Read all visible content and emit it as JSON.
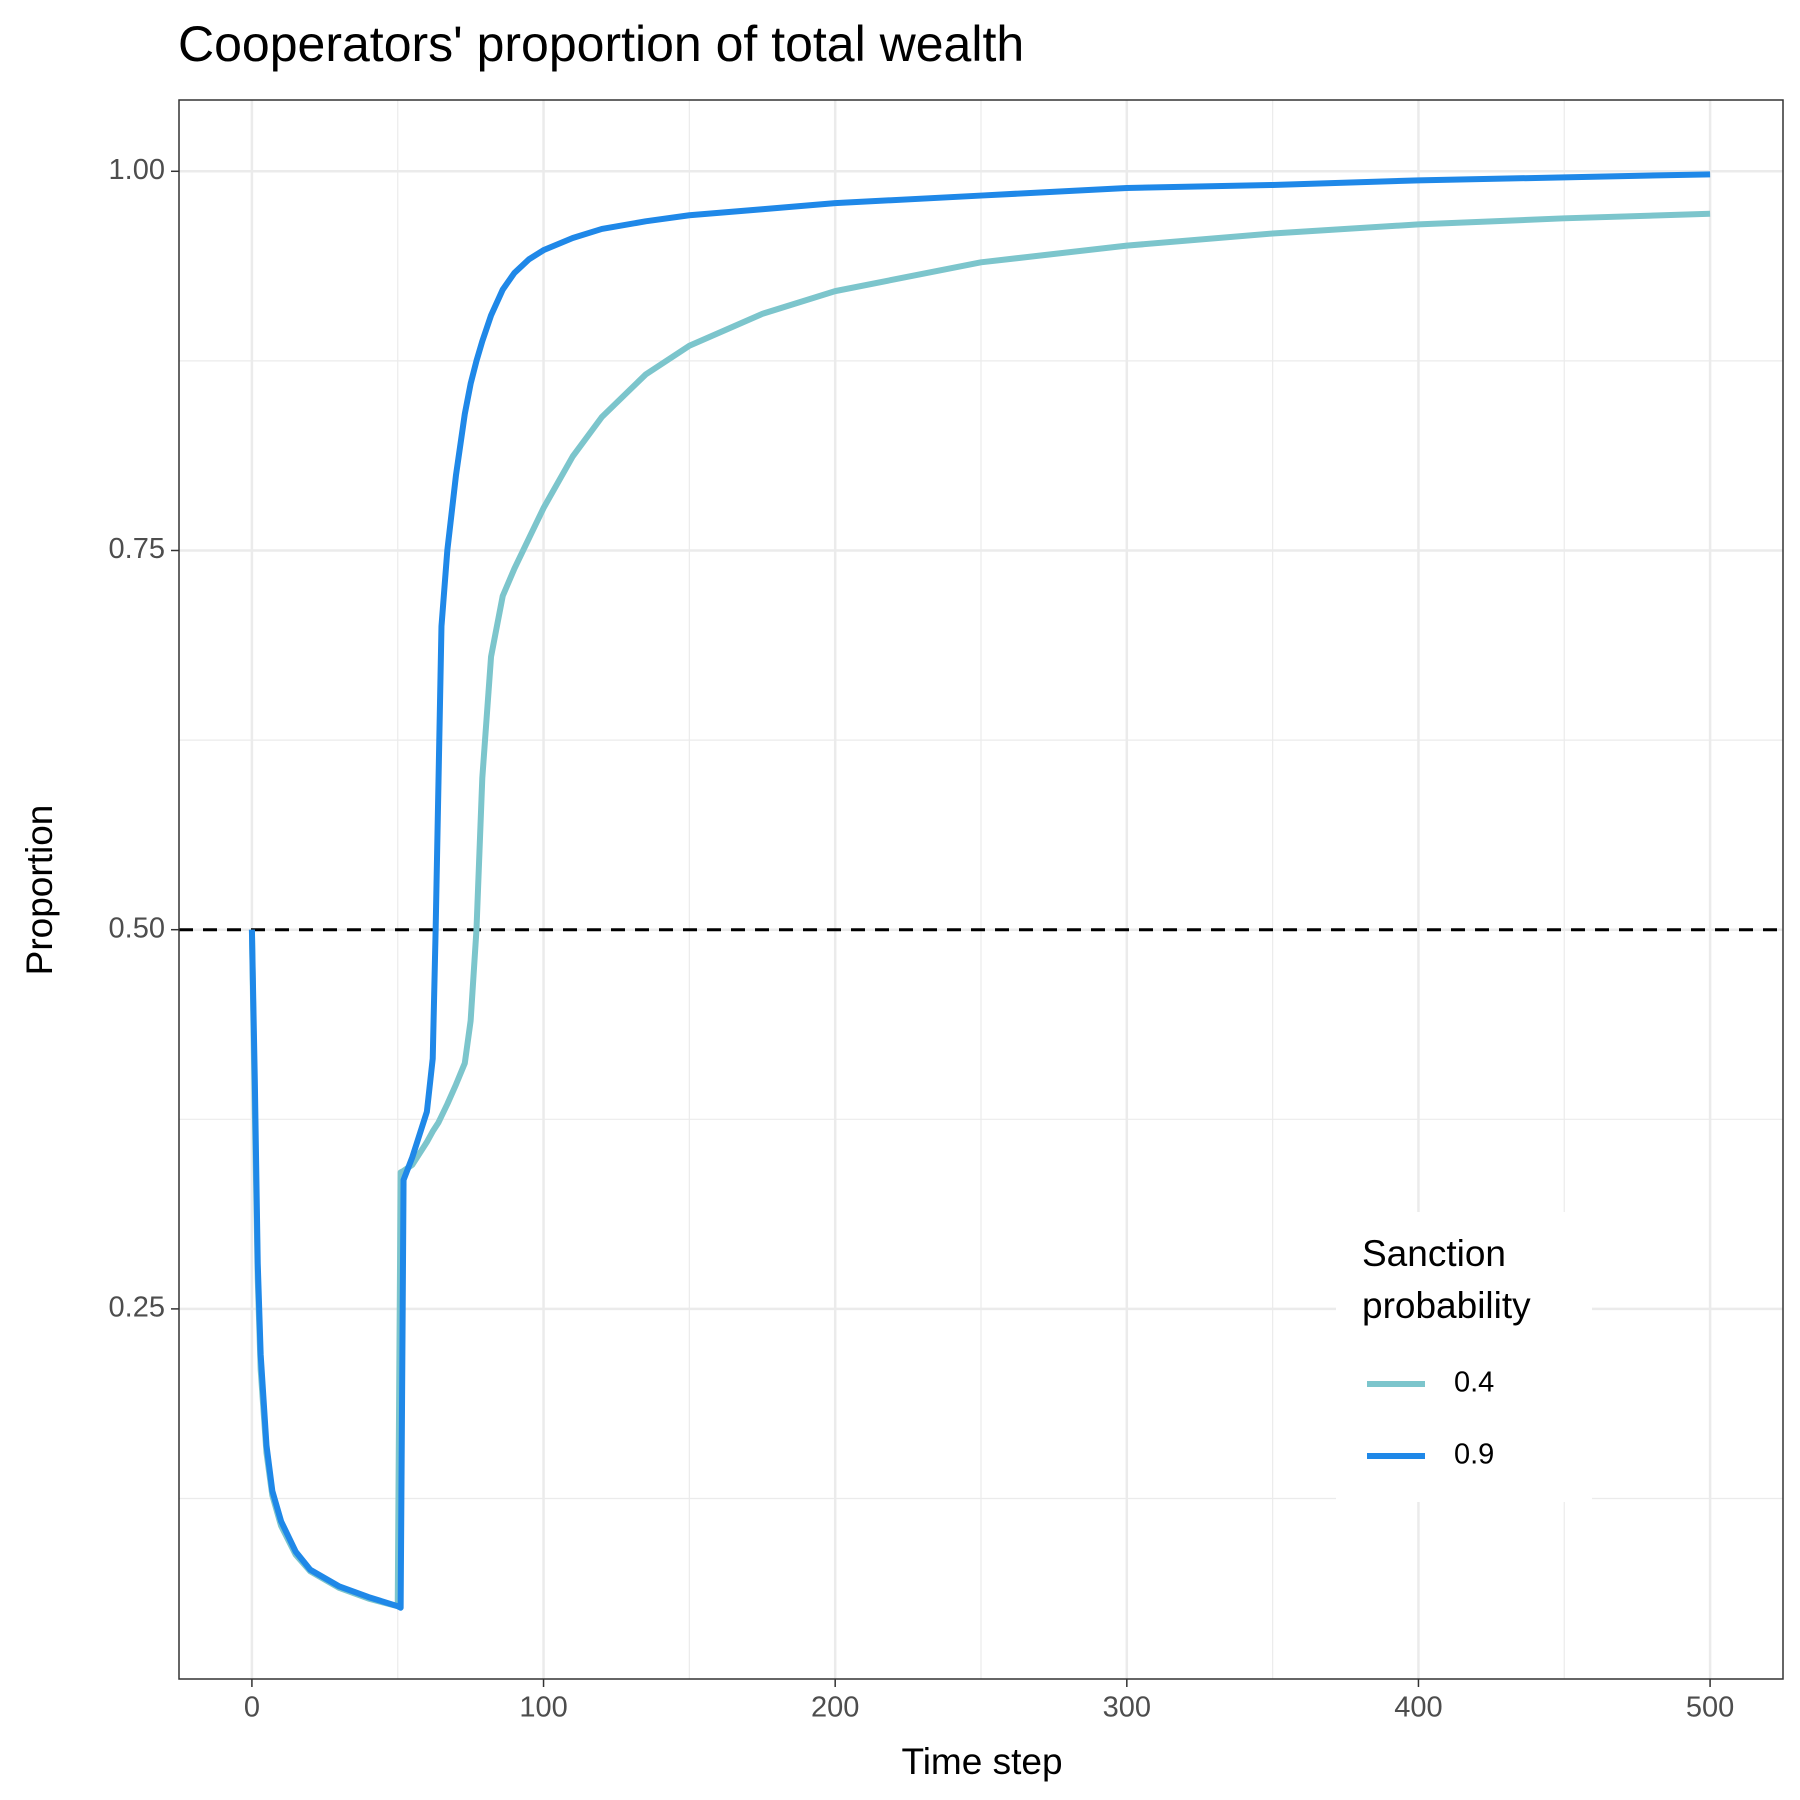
{
  "chart_data": {
    "type": "line",
    "title": "Cooperators' proportion of total wealth",
    "x_label": "Time step",
    "y_label": "Proportion",
    "x": [
      0,
      1,
      2,
      3,
      5,
      7,
      10,
      15,
      20,
      30,
      40,
      50,
      51,
      52,
      55,
      60,
      62,
      63,
      64,
      65,
      67,
      70,
      73,
      75,
      77,
      79,
      82,
      86,
      90,
      95,
      100,
      110,
      120,
      135,
      150,
      175,
      200,
      250,
      300,
      350,
      400,
      450,
      500
    ],
    "series": [
      {
        "name": "0.4",
        "color": "#7cc5cc",
        "values": [
          0.5,
          0.38,
          0.27,
          0.21,
          0.155,
          0.127,
          0.107,
          0.088,
          0.077,
          0.066,
          0.059,
          0.054,
          0.34,
          0.341,
          0.345,
          0.36,
          0.367,
          0.37,
          0.373,
          0.377,
          0.385,
          0.398,
          0.412,
          0.44,
          0.5,
          0.6,
          0.68,
          0.72,
          0.738,
          0.758,
          0.778,
          0.812,
          0.838,
          0.866,
          0.885,
          0.906,
          0.921,
          0.94,
          0.951,
          0.959,
          0.965,
          0.969,
          0.972
        ]
      },
      {
        "name": "0.9",
        "color": "#1f88e8",
        "values": [
          0.5,
          0.4,
          0.28,
          0.22,
          0.16,
          0.13,
          0.11,
          0.09,
          0.078,
          0.067,
          0.06,
          0.054,
          0.053,
          0.335,
          0.35,
          0.38,
          0.415,
          0.5,
          0.6,
          0.7,
          0.75,
          0.8,
          0.84,
          0.86,
          0.875,
          0.888,
          0.905,
          0.922,
          0.933,
          0.942,
          0.948,
          0.956,
          0.962,
          0.967,
          0.971,
          0.975,
          0.979,
          0.984,
          0.989,
          0.991,
          0.994,
          0.996,
          0.998
        ]
      }
    ],
    "xlim": [
      -25,
      525
    ],
    "ylim": [
      0.006,
      1.047
    ],
    "xticks": [
      0,
      100,
      200,
      300,
      400,
      500
    ],
    "yticks": [
      0.25,
      {
        "value": 0.5,
        "label": "0.50"
      },
      0.75,
      {
        "value": 1,
        "label": "1.00"
      }
    ],
    "xminor": [
      50,
      150,
      250,
      350,
      450
    ],
    "yminor": [
      0.125,
      0.375,
      0.625,
      0.875
    ],
    "hline": 0.5,
    "grid": true,
    "legend_title": [
      "Sanction",
      "probability"
    ],
    "legend_position": "bottom-right"
  }
}
